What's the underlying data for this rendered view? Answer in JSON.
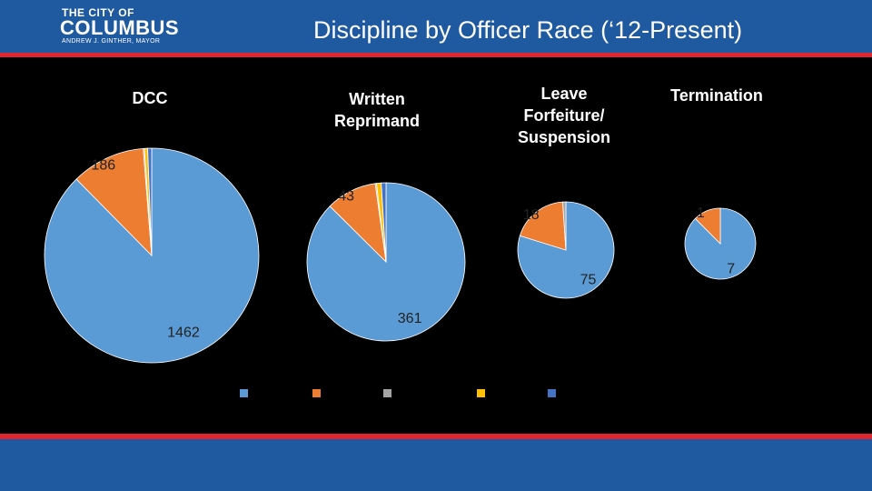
{
  "header": {
    "logo_line1": "THE CITY OF",
    "logo_line2": "COLUMBUS",
    "logo_line3": "ANDREW J. GINTHER, MAYOR",
    "title": "Discipline by Officer Race (‘12-Present)"
  },
  "chart_data": [
    {
      "type": "pie",
      "title": "DCC",
      "categories": [
        null,
        null,
        null,
        null,
        null
      ],
      "colors": [
        "#5b9bd5",
        "#ed7d31",
        "#a5a5a5",
        "#ffc000",
        "#4472c4"
      ],
      "values": [
        1462,
        186,
        3,
        8,
        10
      ]
    },
    {
      "type": "pie",
      "title": "Written Reprimand",
      "categories": [
        null,
        null,
        null,
        null,
        null
      ],
      "colors": [
        "#5b9bd5",
        "#ed7d31",
        "#a5a5a5",
        "#ffc000",
        "#4472c4"
      ],
      "values": [
        361,
        43,
        1,
        4,
        4
      ]
    },
    {
      "type": "pie",
      "title": "Leave Forfeiture/ Suspension",
      "categories": [
        null,
        null,
        null,
        null,
        null
      ],
      "colors": [
        "#5b9bd5",
        "#ed7d31",
        "#a5a5a5",
        "#ffc000",
        "#4472c4"
      ],
      "values": [
        75,
        18,
        1,
        0,
        0
      ]
    },
    {
      "type": "pie",
      "title": "Termination",
      "categories": [
        null,
        null,
        null,
        null,
        null
      ],
      "colors": [
        "#5b9bd5",
        "#ed7d31",
        "#a5a5a5",
        "#ffc000",
        "#4472c4"
      ],
      "values": [
        7,
        1,
        0,
        0,
        0
      ]
    }
  ]
}
